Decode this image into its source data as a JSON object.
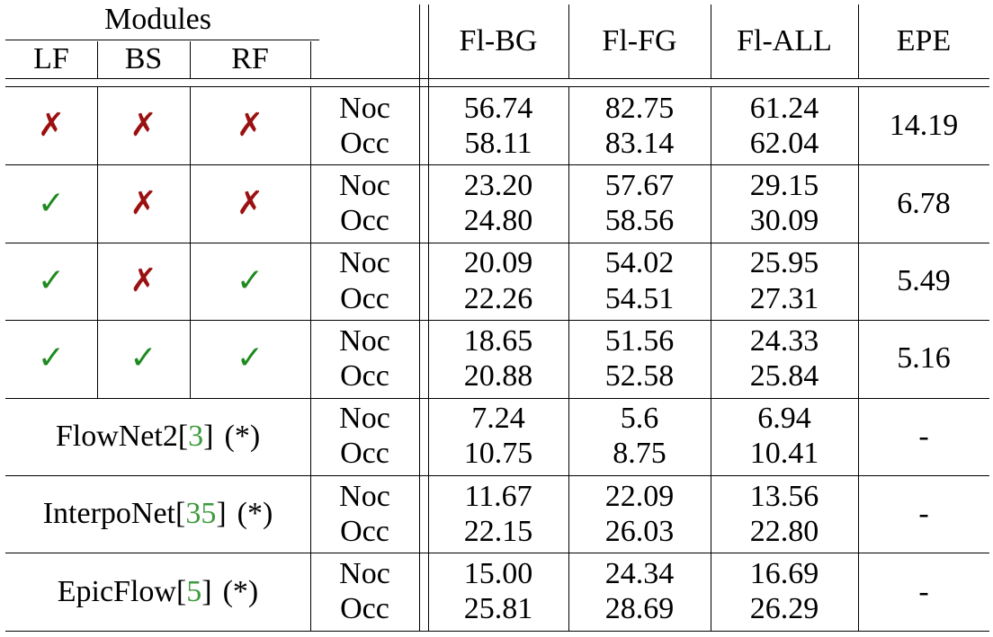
{
  "header": {
    "modules": "Modules",
    "lf": "LF",
    "bs": "BS",
    "rf": "RF",
    "fl_bg": "Fl-BG",
    "fl_fg": "Fl-FG",
    "fl_all": "Fl-ALL",
    "epe": "EPE"
  },
  "symbols": {
    "cross": "✗",
    "check": "✓"
  },
  "rows": [
    {
      "lf": "cross",
      "bs": "cross",
      "rf": "cross",
      "noc": {
        "label": "Noc",
        "bg": "56.74",
        "fg": "82.75",
        "all": "61.24"
      },
      "occ": {
        "label": "Occ",
        "bg": "58.11",
        "fg": "83.14",
        "all": "62.04"
      },
      "epe": "14.19"
    },
    {
      "lf": "check",
      "bs": "cross",
      "rf": "cross",
      "noc": {
        "label": "Noc",
        "bg": "23.20",
        "fg": "57.67",
        "all": "29.15"
      },
      "occ": {
        "label": "Occ",
        "bg": "24.80",
        "fg": "58.56",
        "all": "30.09"
      },
      "epe": "6.78"
    },
    {
      "lf": "check",
      "bs": "cross",
      "rf": "check",
      "noc": {
        "label": "Noc",
        "bg": "20.09",
        "fg": "54.02",
        "all": "25.95"
      },
      "occ": {
        "label": "Occ",
        "bg": "22.26",
        "fg": "54.51",
        "all": "27.31"
      },
      "epe": "5.49"
    },
    {
      "lf": "check",
      "bs": "check",
      "rf": "check",
      "noc": {
        "label": "Noc",
        "bg": "18.65",
        "fg": "51.56",
        "all": "24.33"
      },
      "occ": {
        "label": "Occ",
        "bg": "20.88",
        "fg": "52.58",
        "all": "25.84"
      },
      "epe": "5.16"
    },
    {
      "method": {
        "name": "FlowNet2",
        "open": "[",
        "ref": "3",
        "close": "]",
        "note": "(*)"
      },
      "noc": {
        "label": "Noc",
        "bg": "7.24",
        "fg": "5.6",
        "all": "6.94"
      },
      "occ": {
        "label": "Occ",
        "bg": "10.75",
        "fg": "8.75",
        "all": "10.41"
      },
      "epe": "-"
    },
    {
      "method": {
        "name": "InterpoNet",
        "open": "[",
        "ref": "35",
        "close": "]",
        "note": "(*)"
      },
      "noc": {
        "label": "Noc",
        "bg": "11.67",
        "fg": "22.09",
        "all": "13.56"
      },
      "occ": {
        "label": "Occ",
        "bg": "22.15",
        "fg": "26.03",
        "all": "22.80"
      },
      "epe": "-"
    },
    {
      "method": {
        "name": "EpicFlow",
        "open": "[",
        "ref": "5",
        "close": "]",
        "note": "(*)"
      },
      "noc": {
        "label": "Noc",
        "bg": "15.00",
        "fg": "24.34",
        "all": "16.69"
      },
      "occ": {
        "label": "Occ",
        "bg": "25.81",
        "fg": "28.69",
        "all": "26.29"
      },
      "epe": "-"
    }
  ]
}
